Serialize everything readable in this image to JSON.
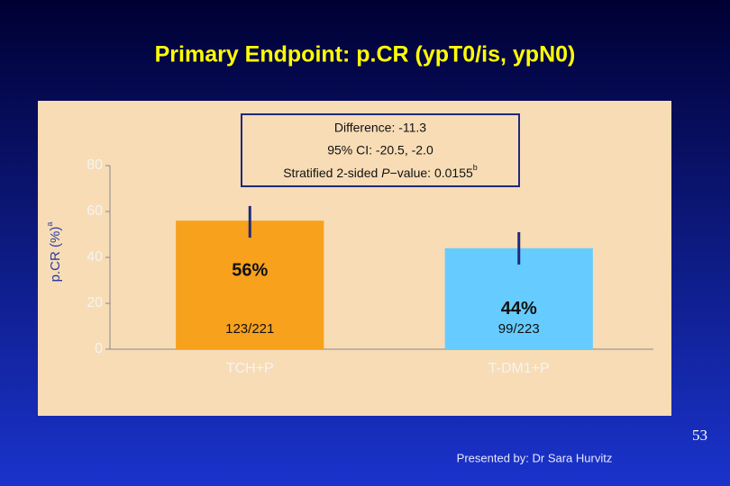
{
  "chart_data": {
    "type": "bar",
    "title": "Primary Endpoint: p.CR (ypT0/is, ypN0)",
    "y_label": "p.CR (%)",
    "y_label_sup": "a",
    "categories": [
      "TCH+P",
      "T-DM1+P"
    ],
    "values": [
      56,
      44
    ],
    "value_labels": [
      "56%",
      "44%"
    ],
    "counts": [
      "123/221",
      "99/223"
    ],
    "error_low": [
      48.6,
      36.9
    ],
    "error_high": [
      62.4,
      51.0
    ],
    "colors": [
      "#f7a11c",
      "#66ccff"
    ],
    "ylim": [
      0,
      80
    ],
    "yticks": [
      0,
      20,
      40,
      60,
      80
    ],
    "annotation": {
      "line1": "Difference: -11.3",
      "line2": "95% CI: -20.5, -2.0",
      "line3_a": "Stratified 2-sided ",
      "line3_b": "P",
      "line3_c": "−value: 0.0155",
      "line3_sup": "b"
    }
  },
  "footer": {
    "page": "53",
    "presenter": "Presented by: Dr Sara Hurvitz"
  }
}
